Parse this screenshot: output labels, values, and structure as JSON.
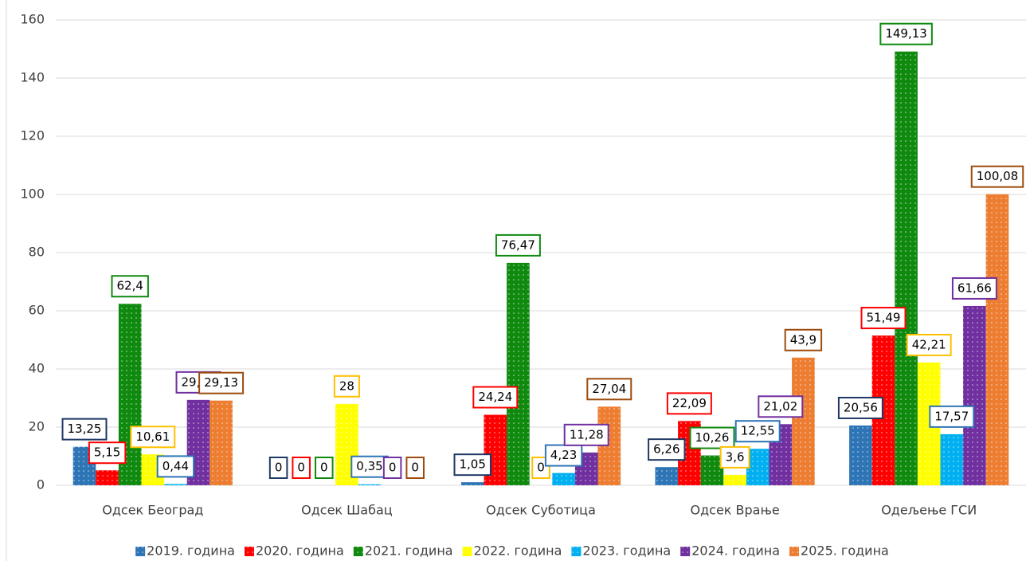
{
  "chart_data": {
    "type": "bar",
    "categories": [
      "Одсек Београд",
      "Одсек Шабац",
      "Одсек Суботица",
      "Одсек Врање",
      "Одељење ГСИ"
    ],
    "series": [
      {
        "name": "2019. година",
        "color": "#2e75b6",
        "label_border": "#1f3864",
        "values": [
          13.25,
          0,
          1.05,
          6.26,
          20.56
        ],
        "value_labels": [
          "13,25",
          "0",
          "1,05",
          "6,26",
          "20,56"
        ]
      },
      {
        "name": "2020. година",
        "color": "#ff0000",
        "label_border": "#ff0000",
        "values": [
          5.15,
          0,
          24.24,
          22.09,
          51.49
        ],
        "value_labels": [
          "5,15",
          "0",
          "24,24",
          "22,09",
          "51,49"
        ]
      },
      {
        "name": "2021. година",
        "color": "#0f8a0f",
        "label_border": "#0f8a0f",
        "values": [
          62.4,
          0,
          76.47,
          10.26,
          149.13
        ],
        "value_labels": [
          "62,4",
          "0",
          "76,47",
          "10,26",
          "149,13"
        ]
      },
      {
        "name": "2022. година",
        "color": "#ffff00",
        "label_border": "#ffc000",
        "values": [
          10.61,
          28,
          0,
          3.6,
          42.21
        ],
        "value_labels": [
          "10,61",
          "28",
          "0",
          "3,6",
          "42,21"
        ]
      },
      {
        "name": "2023. година",
        "color": "#00b0f0",
        "label_border": "#2e75b6",
        "values": [
          0.44,
          0.35,
          4.23,
          12.55,
          17.57
        ],
        "value_labels": [
          "0,44",
          "0,35",
          "4,23",
          "12,55",
          "17,57"
        ]
      },
      {
        "name": "2024. година",
        "color": "#7030a0",
        "label_border": "#7030a0",
        "values": [
          29.36,
          0,
          11.28,
          21.02,
          61.66
        ],
        "value_labels": [
          "29,36",
          "0",
          "11,28",
          "21,02",
          "61,66"
        ]
      },
      {
        "name": "2025. година",
        "color": "#ed7d31",
        "label_border": "#9c4b0c",
        "values": [
          29.13,
          0,
          27.04,
          43.9,
          100.08
        ],
        "value_labels": [
          "29,13",
          "0",
          "27,04",
          "43,9",
          "100,08"
        ]
      }
    ],
    "ylim": [
      0,
      160
    ],
    "yticks": [
      0,
      20,
      40,
      60,
      80,
      100,
      120,
      140,
      160
    ],
    "grid": true,
    "legend": "bottom"
  }
}
